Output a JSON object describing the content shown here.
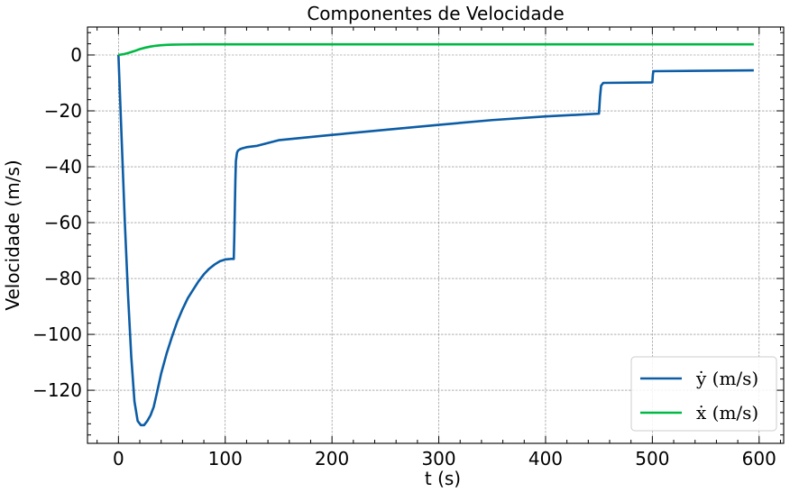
{
  "chart_data": {
    "type": "line",
    "title": "Componentes de Velocidade",
    "xlabel": "t (s)",
    "ylabel": "Velocidade (m/s)",
    "xlim": [
      -29,
      623
    ],
    "ylim": [
      -139,
      10
    ],
    "xticks": [
      0,
      100,
      200,
      300,
      400,
      500,
      600
    ],
    "xtick_labels": [
      "0",
      "100",
      "200",
      "300",
      "400",
      "500",
      "600"
    ],
    "yticks": [
      0,
      -20,
      -40,
      -60,
      -80,
      -100,
      -120
    ],
    "ytick_labels": [
      "0",
      "−20",
      "−40",
      "−60",
      "−80",
      "−100",
      "−120"
    ],
    "grid": true,
    "legend_position": "bottom-right",
    "series": [
      {
        "name": "ẏ (m/s)",
        "color": "#0c5da5",
        "x": [
          0,
          3,
          6,
          9,
          12,
          15,
          18,
          21,
          24,
          27,
          30,
          33,
          36,
          40,
          45,
          50,
          55,
          60,
          65,
          70,
          75,
          80,
          85,
          90,
          95,
          100,
          105,
          108,
          108.5,
          109,
          109.5,
          110,
          111,
          112,
          114,
          116,
          120,
          130,
          150,
          200,
          250,
          300,
          350,
          400,
          450,
          451,
          452,
          454,
          500,
          500.5,
          501,
          595
        ],
        "y": [
          0,
          -30,
          -60,
          -86,
          -108,
          -124,
          -131,
          -132.5,
          -132.5,
          -131,
          -129,
          -126,
          -121,
          -114,
          -107,
          -101,
          -95.5,
          -91,
          -87,
          -84,
          -81,
          -78.5,
          -76.5,
          -75,
          -73.8,
          -73.2,
          -73,
          -73,
          -65,
          -55,
          -45,
          -38,
          -35,
          -34.2,
          -33.7,
          -33.4,
          -33,
          -32.5,
          -30.5,
          -28.6,
          -26.8,
          -25,
          -23.3,
          -22,
          -21,
          -15,
          -11,
          -10,
          -9.8,
          -7,
          -5.8,
          -5.5
        ]
      },
      {
        "name": "ẋ (m/s)",
        "color": "#00b945",
        "x": [
          0,
          5,
          10,
          15,
          20,
          25,
          30,
          35,
          40,
          45,
          50,
          60,
          80,
          100,
          200,
          300,
          400,
          500,
          595
        ],
        "y": [
          0,
          0.3,
          0.8,
          1.4,
          2.1,
          2.6,
          3.0,
          3.3,
          3.5,
          3.6,
          3.7,
          3.75,
          3.8,
          3.8,
          3.8,
          3.8,
          3.8,
          3.8,
          3.8
        ]
      }
    ]
  }
}
